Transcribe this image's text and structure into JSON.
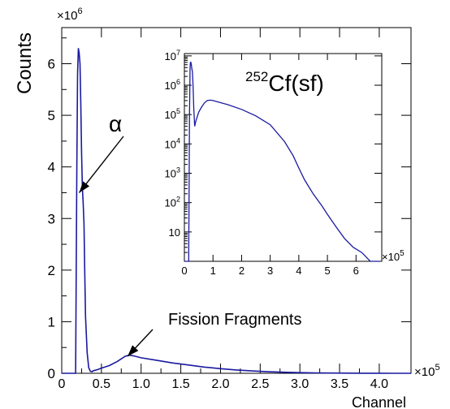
{
  "chart_data": [
    {
      "type": "line",
      "xlabel": "Channel",
      "ylabel": "Counts",
      "x_multiplier": "×10",
      "x_exponent": "5",
      "y_multiplier": "×10",
      "y_exponent": "6",
      "xlim": [
        0,
        440000
      ],
      "ylim": [
        0,
        6700000
      ],
      "x_ticks": [
        0,
        50000,
        100000,
        150000,
        200000,
        250000,
        300000,
        350000,
        400000
      ],
      "x_tick_labels": [
        "0",
        "0.5",
        "1.0",
        "1.5",
        "2.0",
        "2.5",
        "3.0",
        "3.5",
        "4.0"
      ],
      "y_ticks": [
        0,
        1000000,
        2000000,
        3000000,
        4000000,
        5000000,
        6000000
      ],
      "y_tick_labels": [
        "0",
        "1",
        "2",
        "3",
        "4",
        "5",
        "6"
      ],
      "series": [
        {
          "color": "#1a1aa0",
          "x": [
            0,
            15000,
            17500,
            19000,
            20000,
            21000,
            22000,
            23000,
            24000,
            25000,
            26000,
            27000,
            28000,
            29000,
            30000,
            32000,
            34000,
            36000,
            38000,
            40000,
            45000,
            50000,
            60000,
            70000,
            75000,
            80000,
            85000,
            90000,
            100000,
            120000,
            140000,
            160000,
            180000,
            200000,
            220000,
            240000,
            260000,
            280000,
            300000,
            320000,
            340000,
            360000,
            380000,
            400000,
            420000,
            440000
          ],
          "y": [
            0,
            0,
            0,
            4000000,
            5800000,
            6300000,
            6200000,
            6000000,
            5200000,
            4300000,
            3600000,
            3300000,
            2900000,
            2000000,
            1100000,
            400000,
            110000,
            40000,
            30000,
            50000,
            70000,
            100000,
            150000,
            230000,
            280000,
            330000,
            350000,
            340000,
            300000,
            250000,
            200000,
            160000,
            120000,
            90000,
            65000,
            45000,
            30000,
            20000,
            12000,
            8000,
            5000,
            3000,
            2000,
            1000,
            500,
            200
          ]
        }
      ],
      "annotations": [
        {
          "text": "α",
          "arrow_to": [
            22000,
            3500000
          ]
        },
        {
          "text": "Fission Fragments",
          "arrow_to": [
            83000,
            330000
          ]
        }
      ]
    },
    {
      "type": "line",
      "title": "Cf(sf)",
      "title_prefix": "252",
      "x_scale": "linear",
      "y_scale": "log",
      "x_multiplier": "×10",
      "x_exponent": "5",
      "xlim": [
        0,
        690000
      ],
      "ylim": [
        1,
        12000000
      ],
      "x_ticks": [
        0,
        100000,
        200000,
        300000,
        400000,
        500000,
        600000
      ],
      "x_tick_labels": [
        "0",
        "1",
        "2",
        "3",
        "4",
        "5",
        "6"
      ],
      "y_ticks": [
        10,
        100,
        1000,
        10000,
        100000,
        1000000,
        10000000
      ],
      "y_tick_labels": [
        {
          "base": "10",
          "exp": ""
        },
        {
          "base": "10",
          "exp": "2"
        },
        {
          "base": "10",
          "exp": "3"
        },
        {
          "base": "10",
          "exp": "4"
        },
        {
          "base": "10",
          "exp": "5"
        },
        {
          "base": "10",
          "exp": "6"
        },
        {
          "base": "10",
          "exp": "7"
        }
      ],
      "series": [
        {
          "color": "#1a1aa0",
          "x": [
            0,
            15000,
            18000,
            20000,
            21000,
            22000,
            24000,
            26000,
            28000,
            30000,
            33000,
            36000,
            40000,
            50000,
            60000,
            70000,
            80000,
            90000,
            100000,
            150000,
            200000,
            250000,
            300000,
            350000,
            380000,
            400000,
            420000,
            450000,
            480000,
            500000,
            530000,
            560000,
            590000,
            620000,
            650000,
            680000
          ],
          "y": [
            1,
            1,
            100000,
            4000000,
            5800000,
            6300000,
            5200000,
            3600000,
            2900000,
            1100000,
            150000,
            40000,
            60000,
            120000,
            180000,
            250000,
            300000,
            310000,
            300000,
            220000,
            150000,
            90000,
            45000,
            12000,
            4000,
            1500,
            600,
            200,
            80,
            40,
            15,
            6,
            3,
            2,
            1,
            1
          ]
        }
      ]
    }
  ]
}
